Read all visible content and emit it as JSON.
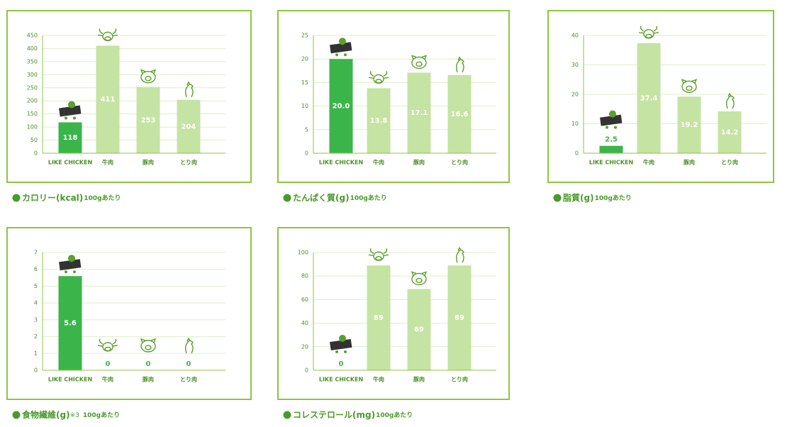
{
  "chart_data": [
    {
      "type": "bar",
      "title": "カロリー(kcal)",
      "subtitle": "100gあたり",
      "categories": [
        "LIKE CHICKEN",
        "牛肉",
        "豚肉",
        "とり肉"
      ],
      "values": [
        118,
        411,
        253,
        204
      ],
      "colors": [
        "#3bb54a",
        "#c5e3a3",
        "#c5e3a3",
        "#c5e3a3"
      ],
      "ylim": [
        0,
        450
      ],
      "yticks": [
        0,
        50,
        100,
        150,
        200,
        250,
        300,
        350,
        400,
        450
      ],
      "grid": true
    },
    {
      "type": "bar",
      "title": "たんぱく質(g)",
      "subtitle": "100gあたり",
      "categories": [
        "LIKE CHICKEN",
        "牛肉",
        "豚肉",
        "とり肉"
      ],
      "values": [
        20.0,
        13.8,
        17.1,
        16.6
      ],
      "value_labels": [
        "20.0",
        "13.8",
        "17.1",
        "16.6"
      ],
      "colors": [
        "#3bb54a",
        "#c5e3a3",
        "#c5e3a3",
        "#c5e3a3"
      ],
      "ylim": [
        0,
        25
      ],
      "yticks": [
        0,
        5,
        10,
        15,
        20,
        25
      ],
      "grid": true
    },
    {
      "type": "bar",
      "title": "脂質(g)",
      "subtitle": "100gあたり",
      "categories": [
        "LIKE CHICKEN",
        "牛肉",
        "豚肉",
        "とり肉"
      ],
      "values": [
        2.5,
        37.4,
        19.2,
        14.2
      ],
      "colors": [
        "#3bb54a",
        "#c5e3a3",
        "#c5e3a3",
        "#c5e3a3"
      ],
      "ylim": [
        0,
        40
      ],
      "yticks": [
        0,
        10,
        20,
        30,
        40
      ],
      "grid": true
    },
    {
      "type": "bar",
      "title": "食物繊維(g)",
      "note": "※3",
      "subtitle": "100gあたり",
      "categories": [
        "LIKE CHICKEN",
        "牛肉",
        "豚肉",
        "とり肉"
      ],
      "values": [
        5.6,
        0,
        0,
        0
      ],
      "colors": [
        "#3bb54a",
        "#c5e3a3",
        "#c5e3a3",
        "#c5e3a3"
      ],
      "ylim": [
        0,
        7
      ],
      "yticks": [
        0,
        1,
        2,
        3,
        4,
        5,
        6,
        7
      ],
      "grid": true
    },
    {
      "type": "bar",
      "title": "コレステロール(mg)",
      "subtitle": "100gあたり",
      "categories": [
        "LIKE CHICKEN",
        "牛肉",
        "豚肉",
        "とり肉"
      ],
      "values": [
        0,
        89,
        69,
        89
      ],
      "colors": [
        "#3bb54a",
        "#c5e3a3",
        "#c5e3a3",
        "#c5e3a3"
      ],
      "ylim": [
        0,
        100
      ],
      "yticks": [
        0,
        20,
        40,
        60,
        80,
        100
      ],
      "grid": true
    }
  ]
}
